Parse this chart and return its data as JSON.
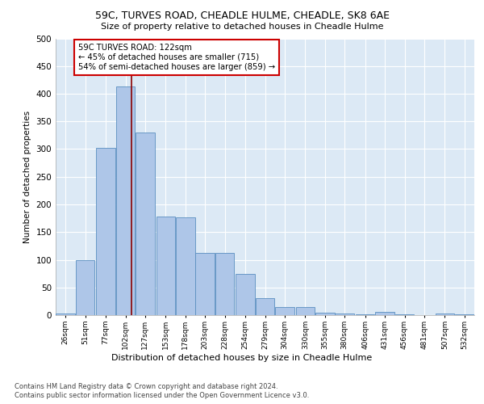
{
  "title_line1": "59C, TURVES ROAD, CHEADLE HULME, CHEADLE, SK8 6AE",
  "title_line2": "Size of property relative to detached houses in Cheadle Hulme",
  "xlabel": "Distribution of detached houses by size in Cheadle Hulme",
  "ylabel": "Number of detached properties",
  "footnote1": "Contains HM Land Registry data © Crown copyright and database right 2024.",
  "footnote2": "Contains public sector information licensed under the Open Government Licence v3.0.",
  "annotation_line1": "59C TURVES ROAD: 122sqm",
  "annotation_line2": "← 45% of detached houses are smaller (715)",
  "annotation_line3": "54% of semi-detached houses are larger (859) →",
  "property_size": 122,
  "bar_edges": [
    26,
    51,
    77,
    102,
    127,
    153,
    178,
    203,
    228,
    254,
    279,
    304,
    330,
    355,
    380,
    406,
    431,
    456,
    481,
    507,
    532
  ],
  "bar_heights": [
    3,
    99,
    302,
    413,
    330,
    178,
    177,
    112,
    112,
    75,
    30,
    14,
    14,
    5,
    3,
    1,
    6,
    1,
    0,
    3,
    2
  ],
  "bar_color": "#aec6e8",
  "bar_edge_color": "#5a8fc0",
  "vline_color": "#8b0000",
  "vline_x": 122,
  "annotation_box_color": "#ffffff",
  "annotation_box_edge": "#cc0000",
  "ylim": [
    0,
    500
  ],
  "yticks": [
    0,
    50,
    100,
    150,
    200,
    250,
    300,
    350,
    400,
    450,
    500
  ],
  "background_color": "#dce9f5",
  "plot_background": "#dce9f5",
  "grid_color": "#ffffff"
}
